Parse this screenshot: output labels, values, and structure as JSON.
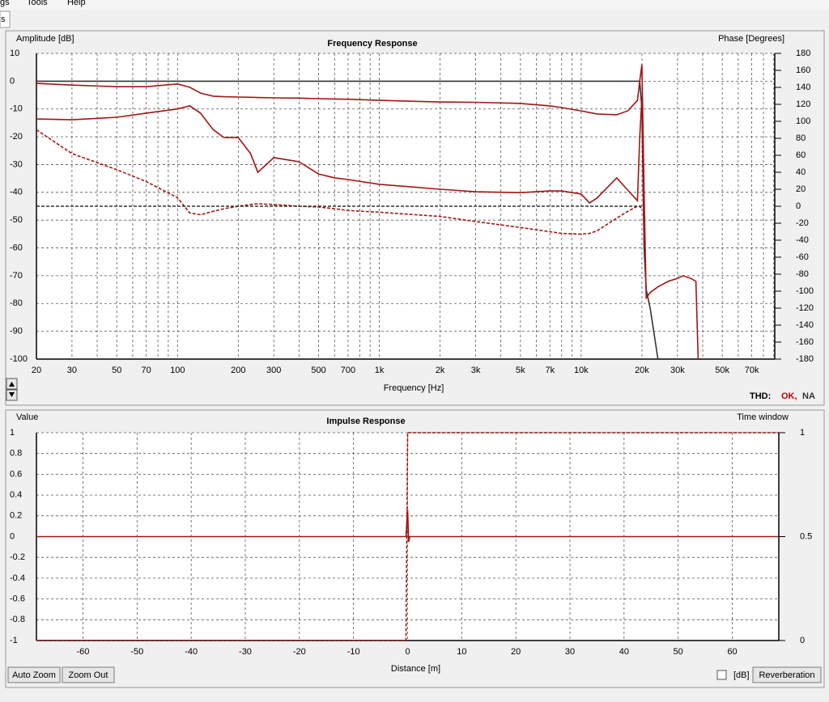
{
  "ui": {
    "menu": [
      "gs",
      "Tools",
      "Help"
    ],
    "tab": "s",
    "buttons": {
      "auto_zoom": "Auto Zoom",
      "zoom_out": "Zoom Out",
      "db": "[dB]",
      "reverberation": "Reverberation"
    },
    "thd": {
      "label": "THD:",
      "status": "OK,",
      "value": "NA"
    }
  },
  "chart_data": [
    {
      "type": "line",
      "title": "Frequency Response",
      "ylabel": "Amplitude [dB]",
      "y2label": "Phase [Degrees]",
      "xlabel": "Frequency [Hz]",
      "xscale": "log",
      "grid": true,
      "xlim": [
        20,
        91000
      ],
      "xticks": [
        20,
        30,
        50,
        70,
        100,
        200,
        300,
        500,
        700,
        {
          "value": 1000,
          "label": "1k"
        },
        {
          "value": 2000,
          "label": "2k"
        },
        {
          "value": 3000,
          "label": "3k"
        },
        {
          "value": 5000,
          "label": "5k"
        },
        {
          "value": 7000,
          "label": "7k"
        },
        {
          "value": 10000,
          "label": "10k"
        },
        {
          "value": 20000,
          "label": "20k"
        },
        {
          "value": 30000,
          "label": "30k"
        },
        {
          "value": 50000,
          "label": "50k"
        },
        {
          "value": 70000,
          "label": "70k"
        }
      ],
      "x_minor_ticks": [
        40,
        60,
        80,
        90,
        400,
        600,
        800,
        900,
        4000,
        6000,
        8000,
        9000,
        40000,
        60000,
        80000,
        90000
      ],
      "ylim": [
        -100,
        10
      ],
      "yticks": [
        10,
        0,
        -10,
        -20,
        -30,
        -40,
        -50,
        -60,
        -70,
        -80,
        -90,
        -100
      ],
      "y2lim": [
        -180,
        180
      ],
      "y2ticks": [
        180,
        160,
        140,
        120,
        100,
        80,
        60,
        40,
        20,
        0,
        -20,
        -40,
        -60,
        -80,
        -100,
        -120,
        -140,
        -160,
        -180
      ],
      "x": [
        20,
        30,
        50,
        70,
        100,
        115,
        130,
        150,
        170,
        200,
        230,
        250,
        300,
        400,
        500,
        600,
        700,
        1000,
        2000,
        3000,
        5000,
        7000,
        8000,
        10000,
        11000,
        12000,
        15000,
        17000,
        19000,
        19500,
        20000,
        20500,
        21000,
        22000,
        24000,
        27000,
        30000,
        32000,
        35000,
        37000,
        38000
      ],
      "series": [
        {
          "color": "#333333",
          "dash": false,
          "values": [
            0,
            0,
            0,
            0,
            0,
            0,
            0,
            0,
            0,
            0,
            0,
            0,
            0,
            0,
            0,
            0,
            0,
            0,
            0,
            0,
            0,
            0,
            0,
            0,
            0,
            0,
            0,
            0,
            0,
            0,
            -10,
            -60,
            -75,
            -82,
            -100,
            null,
            null,
            null,
            null,
            null,
            null
          ]
        },
        {
          "color": "#a31515",
          "dash": false,
          "values": [
            -0.8,
            -1.4,
            -2,
            -2,
            -1,
            -2.2,
            -4.3,
            -5.4,
            -5.6,
            -5.7,
            -5.8,
            -5.9,
            -6,
            -6.1,
            -6.3,
            -6.4,
            -6.5,
            -6.9,
            -7.5,
            -7.6,
            -8,
            -8.9,
            -9.5,
            -10.7,
            -11.3,
            -11.8,
            -12.1,
            -10.7,
            -6.9,
            0,
            6,
            -40,
            -78,
            -76,
            -74,
            -72,
            -71,
            -70,
            -71,
            -72,
            -100
          ]
        },
        {
          "color": "#a31515",
          "dash": false,
          "values": [
            -13.6,
            -13.9,
            -13,
            -11.5,
            -10,
            -8.9,
            -11.5,
            -17.4,
            -20.3,
            -20.3,
            -26,
            -32.8,
            -27.5,
            -29,
            -33.4,
            -34.8,
            -35.4,
            -37.1,
            -38.9,
            -39.8,
            -40.1,
            -39.5,
            -39.5,
            -40.6,
            -43.8,
            -42,
            -34.8,
            -39.2,
            -43,
            -20.3,
            -5.7,
            -58,
            null,
            null,
            null,
            null,
            null,
            null,
            null,
            null,
            null
          ]
        },
        {
          "color": "#a31515",
          "dash": true,
          "axis": "y2",
          "values": [
            90,
            62,
            43,
            29,
            10,
            -8,
            -10,
            -6,
            -3,
            0,
            2,
            3,
            2,
            0,
            -1,
            -3,
            -5,
            -7,
            -12,
            -18,
            -25,
            -30,
            -32,
            -33,
            -32,
            -29,
            -14,
            -6,
            0,
            0,
            -4,
            null,
            null,
            null,
            null,
            null,
            null,
            null,
            null,
            null,
            null
          ]
        },
        {
          "color": "#333333",
          "dash": true,
          "axis": "y2",
          "values": [
            0,
            0,
            0,
            0,
            0,
            0,
            0,
            0,
            0,
            0,
            0,
            0,
            0,
            0,
            0,
            0,
            0,
            0,
            0,
            0,
            0,
            0,
            0,
            0,
            0,
            0,
            0,
            0,
            0,
            0,
            0,
            null,
            null,
            null,
            null,
            null,
            null,
            null,
            null,
            null,
            null
          ]
        }
      ]
    },
    {
      "type": "line",
      "title": "Impulse Response",
      "ylabel": "Value",
      "y2label": "Time window",
      "xlabel": "Distance [m]",
      "grid": true,
      "xlim": [
        -68.6,
        68.6
      ],
      "xticks": [
        -60,
        -50,
        -40,
        -30,
        -20,
        -10,
        0,
        10,
        20,
        30,
        40,
        50,
        60
      ],
      "ylim": [
        -1,
        1
      ],
      "yticks": [
        1,
        0.8,
        0.6,
        0.4,
        0.2,
        0,
        -0.2,
        -0.4,
        -0.6,
        -0.8,
        -1
      ],
      "y2lim": [
        0,
        1
      ],
      "y2ticks": [
        1,
        0.5,
        0
      ],
      "x": [
        -68.6,
        -0.3,
        0,
        0.2,
        0.4,
        68.6
      ],
      "series": [
        {
          "color": "#a31515",
          "dash": false,
          "values": [
            0,
            0,
            0.26,
            -0.05,
            0,
            0
          ]
        },
        {
          "color": "#a31515",
          "dash": true,
          "axis": "y2",
          "values": [
            0,
            0,
            1,
            1,
            1,
            1
          ]
        }
      ]
    }
  ]
}
